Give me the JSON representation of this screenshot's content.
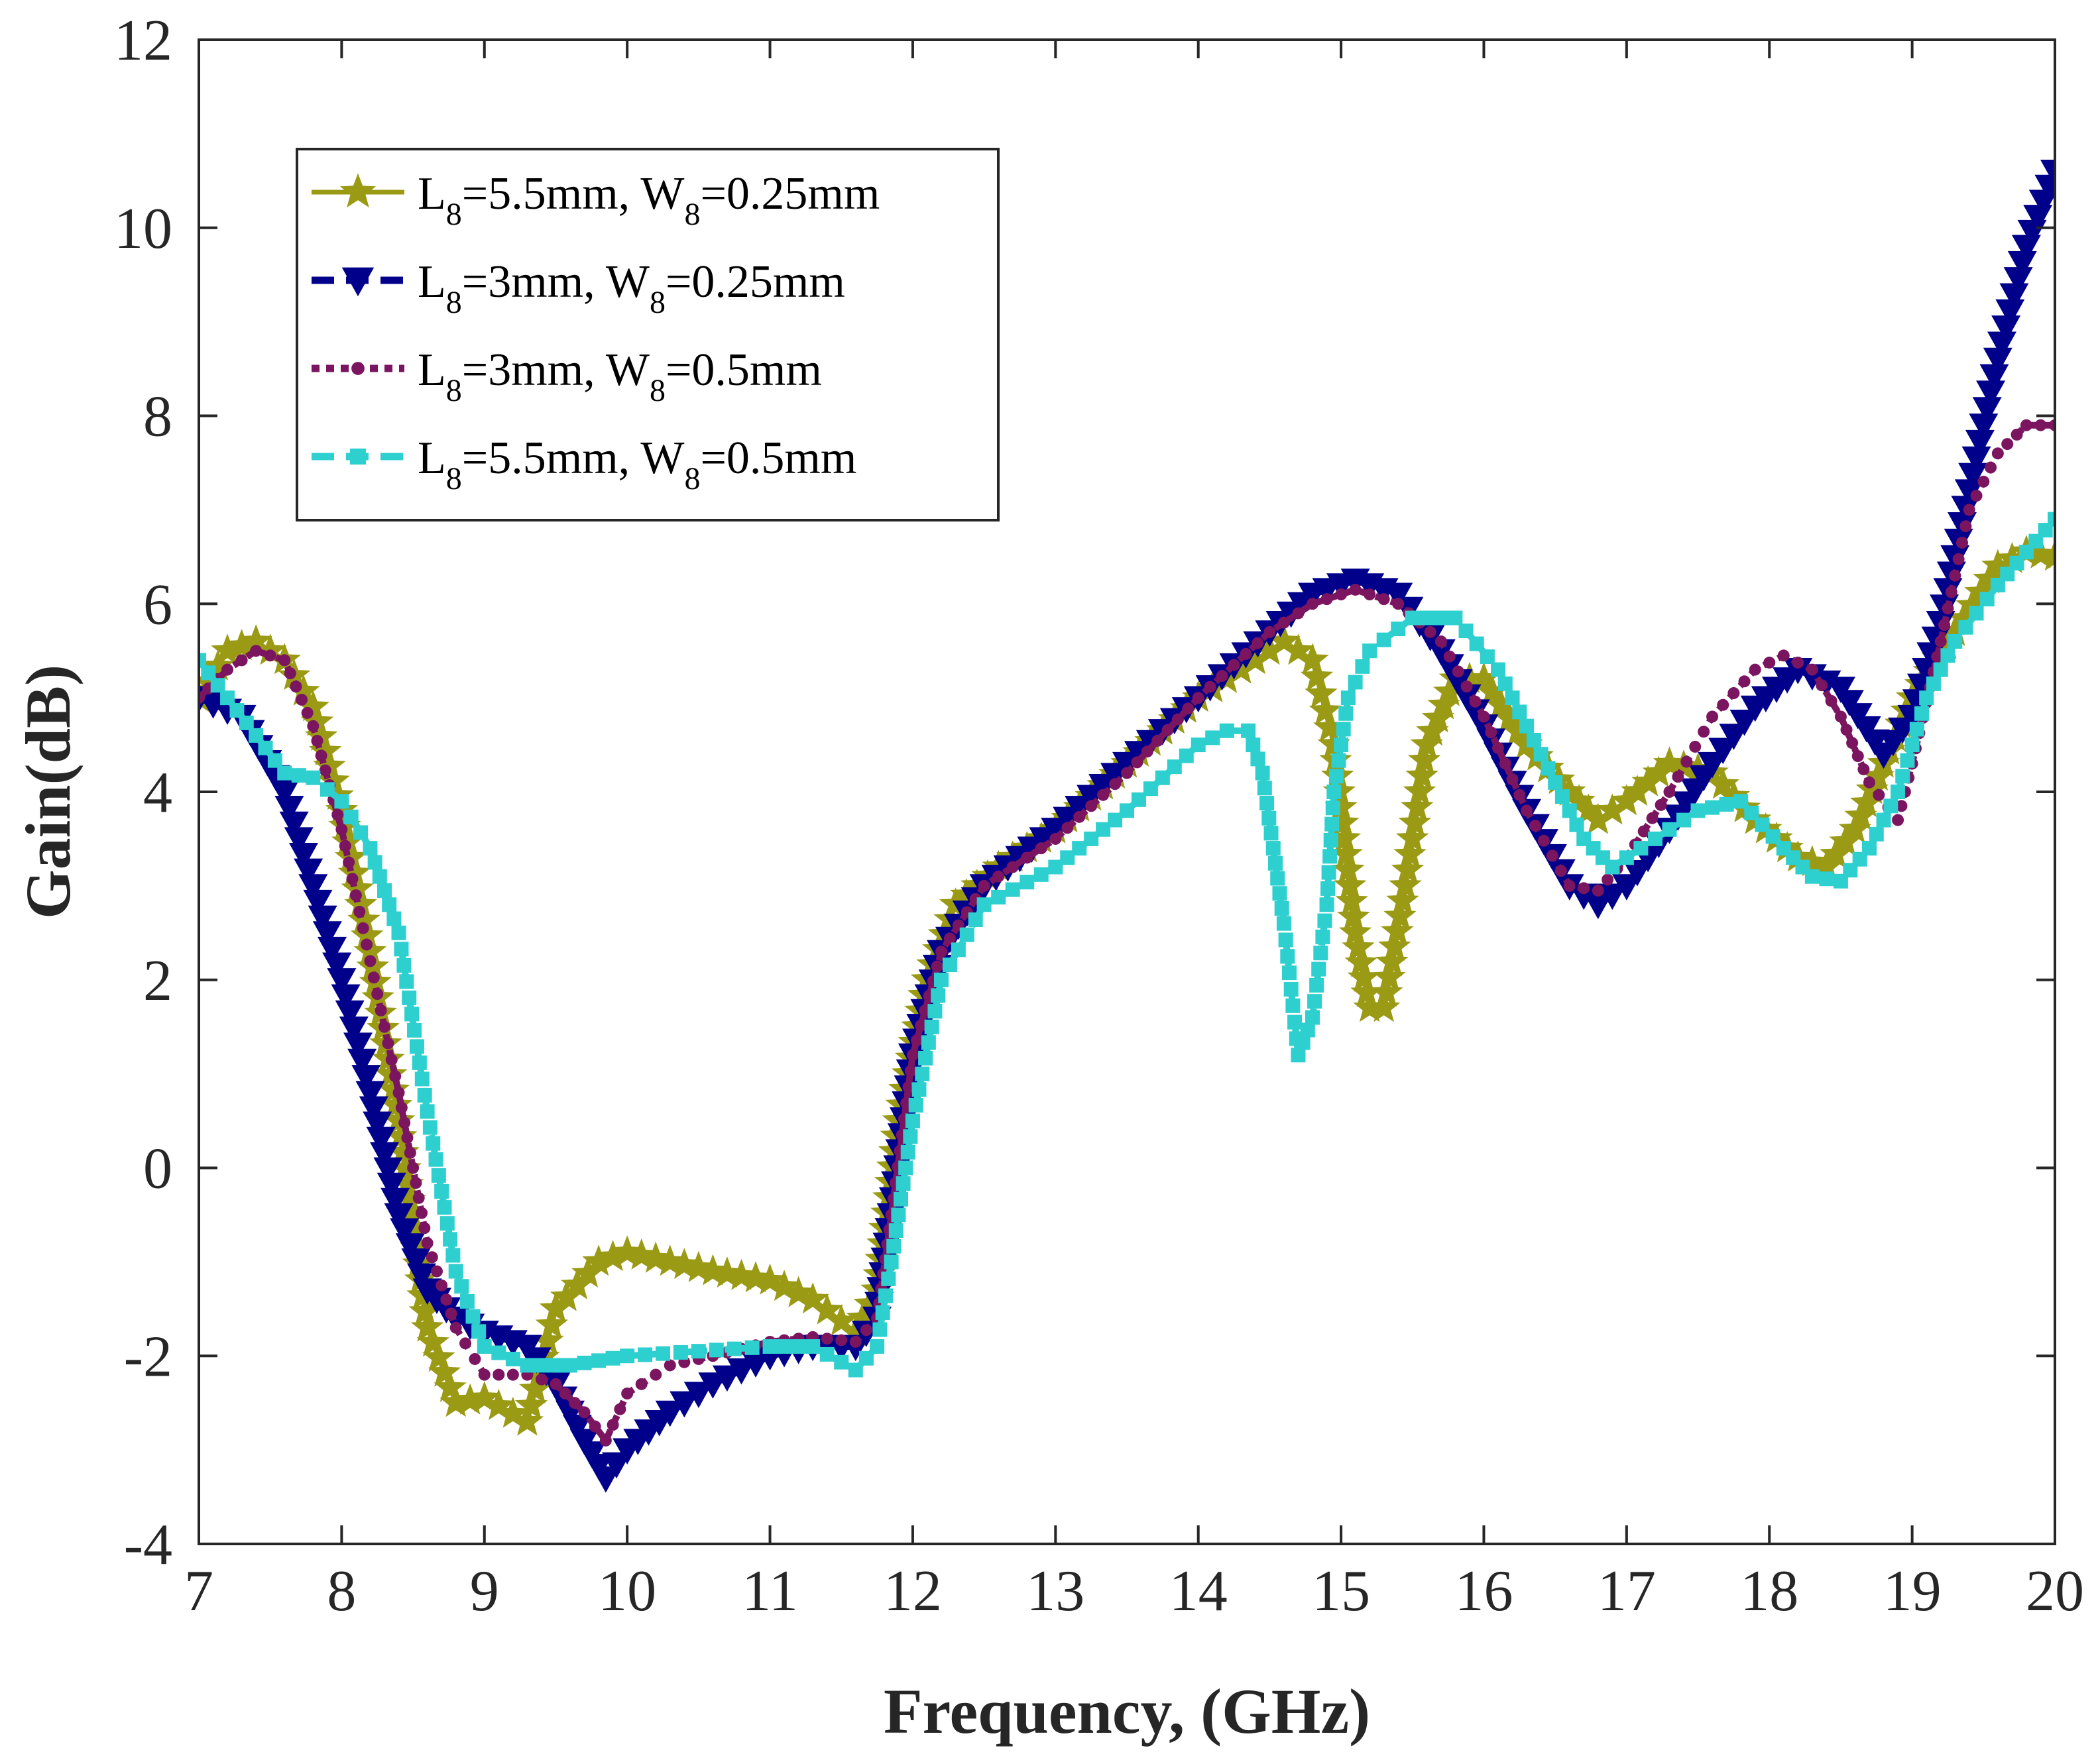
{
  "chart_data": {
    "type": "line",
    "title": "",
    "xlabel": "Frequency, (GHz)",
    "ylabel": "Gain(dB)",
    "xlim": [
      7,
      20
    ],
    "ylim": [
      -4,
      12
    ],
    "xticks": [
      7,
      8,
      9,
      10,
      11,
      12,
      13,
      14,
      15,
      16,
      17,
      18,
      19,
      20
    ],
    "yticks": [
      -4,
      -2,
      0,
      2,
      4,
      6,
      8,
      10,
      12
    ],
    "grid": false,
    "legend_position": "top-left",
    "series": [
      {
        "name": "L8=5.5mm, W8=0.25mm",
        "legend": {
          "a": "L",
          "a_sub": "8",
          "b": "=5.5mm, W",
          "b_sub": "8",
          "c": "=0.25mm"
        },
        "color": "#9a9a14",
        "line": "solid",
        "marker": "star",
        "x": [
          7.0,
          7.2,
          7.4,
          7.6,
          7.8,
          8.0,
          8.2,
          8.4,
          8.6,
          8.8,
          9.0,
          9.3,
          9.5,
          9.8,
          10.0,
          10.3,
          10.6,
          11.0,
          11.3,
          11.6,
          11.75,
          11.9,
          12.1,
          12.3,
          12.6,
          13.0,
          13.5,
          14.0,
          14.3,
          14.6,
          14.8,
          14.95,
          15.1,
          15.2,
          15.3,
          15.45,
          15.6,
          15.8,
          16.0,
          16.3,
          16.6,
          16.8,
          17.0,
          17.3,
          17.6,
          17.9,
          18.2,
          18.4,
          18.6,
          18.8,
          19.0,
          19.3,
          19.6,
          19.8,
          20.0
        ],
        "y": [
          5.0,
          5.5,
          5.6,
          5.4,
          4.9,
          3.8,
          2.3,
          0.5,
          -1.7,
          -2.5,
          -2.45,
          -2.7,
          -1.5,
          -1.0,
          -0.9,
          -1.0,
          -1.1,
          -1.2,
          -1.4,
          -1.75,
          -1.3,
          0.5,
          2.0,
          2.8,
          3.2,
          3.6,
          4.3,
          5.0,
          5.3,
          5.6,
          5.4,
          4.5,
          2.5,
          1.7,
          1.7,
          3.0,
          4.5,
          5.2,
          5.2,
          4.5,
          4.0,
          3.7,
          3.9,
          4.3,
          4.2,
          3.7,
          3.3,
          3.2,
          3.6,
          4.3,
          5.0,
          5.7,
          6.4,
          6.55,
          6.5
        ]
      },
      {
        "name": "L8=3mm, W8=0.25mm",
        "legend": {
          "a": "L",
          "a_sub": "8",
          "b": "=3mm, W",
          "b_sub": "8",
          "c": "=0.25mm"
        },
        "color": "#00008b",
        "line": "dashed",
        "marker": "triangle-down",
        "x": [
          7.0,
          7.3,
          7.6,
          7.8,
          8.0,
          8.2,
          8.4,
          8.6,
          8.8,
          9.0,
          9.3,
          9.5,
          9.7,
          9.85,
          10.0,
          10.3,
          10.6,
          11.0,
          11.3,
          11.6,
          11.75,
          11.85,
          12.0,
          12.2,
          12.5,
          13.0,
          13.5,
          14.0,
          14.5,
          14.8,
          15.1,
          15.4,
          15.7,
          16.0,
          16.3,
          16.6,
          16.8,
          17.0,
          17.3,
          17.6,
          17.9,
          18.2,
          18.5,
          18.8,
          19.0,
          19.2,
          19.4,
          19.6,
          19.8,
          20.0
        ],
        "y": [
          5.0,
          4.8,
          4.0,
          3.0,
          2.0,
          0.8,
          -0.5,
          -1.3,
          -1.6,
          -1.75,
          -1.9,
          -2.3,
          -2.9,
          -3.3,
          -3.0,
          -2.6,
          -2.3,
          -2.0,
          -1.9,
          -1.9,
          -1.6,
          -0.5,
          1.2,
          2.3,
          3.0,
          3.6,
          4.3,
          5.0,
          5.7,
          6.1,
          6.25,
          6.1,
          5.5,
          4.7,
          3.8,
          3.0,
          2.8,
          3.0,
          3.6,
          4.3,
          4.9,
          5.3,
          5.1,
          4.4,
          4.8,
          5.8,
          7.2,
          8.6,
          9.8,
          10.6
        ]
      },
      {
        "name": "L8=3mm, W8=0.5mm",
        "legend": {
          "a": "L",
          "a_sub": "8",
          "b": "=3mm, W",
          "b_sub": "8",
          "c": "=0.5mm"
        },
        "color": "#7b1560",
        "line": "dotted",
        "marker": "dot",
        "x": [
          7.0,
          7.2,
          7.4,
          7.6,
          7.8,
          8.0,
          8.2,
          8.4,
          8.6,
          8.8,
          9.0,
          9.3,
          9.5,
          9.7,
          9.85,
          10.0,
          10.3,
          10.6,
          11.0,
          11.3,
          11.6,
          11.75,
          11.85,
          12.0,
          12.2,
          12.5,
          13.0,
          13.5,
          14.0,
          14.5,
          14.8,
          15.1,
          15.4,
          15.7,
          16.0,
          16.3,
          16.6,
          16.8,
          17.0,
          17.3,
          17.6,
          17.9,
          18.1,
          18.3,
          18.5,
          18.7,
          18.9,
          19.0,
          19.2,
          19.4,
          19.6,
          19.8,
          20.0
        ],
        "y": [
          5.0,
          5.3,
          5.5,
          5.4,
          4.7,
          3.6,
          2.2,
          0.8,
          -0.8,
          -1.7,
          -2.2,
          -2.2,
          -2.3,
          -2.6,
          -2.9,
          -2.4,
          -2.1,
          -2.0,
          -1.85,
          -1.8,
          -1.85,
          -1.6,
          -0.5,
          1.2,
          2.3,
          3.0,
          3.5,
          4.2,
          5.0,
          5.7,
          6.0,
          6.15,
          6.0,
          5.6,
          4.8,
          3.8,
          3.0,
          2.95,
          3.3,
          4.0,
          4.8,
          5.3,
          5.45,
          5.3,
          4.8,
          4.1,
          3.7,
          4.3,
          5.6,
          7.0,
          7.6,
          7.9,
          7.9
        ]
      },
      {
        "name": "L8=5.5mm, W8=0.5mm",
        "legend": {
          "a": "L",
          "a_sub": "8",
          "b": "=5.5mm, W",
          "b_sub": "8",
          "c": "=0.5mm"
        },
        "color": "#2ecfcf",
        "line": "dashed",
        "marker": "square",
        "x": [
          7.0,
          7.2,
          7.4,
          7.6,
          7.8,
          8.0,
          8.2,
          8.4,
          8.6,
          8.8,
          9.0,
          9.3,
          9.6,
          9.8,
          10.0,
          10.5,
          11.0,
          11.3,
          11.6,
          11.75,
          11.85,
          12.0,
          12.2,
          12.5,
          13.0,
          13.5,
          14.0,
          14.2,
          14.35,
          14.45,
          14.6,
          14.7,
          14.8,
          14.9,
          14.95,
          15.05,
          15.2,
          15.5,
          15.8,
          16.1,
          16.4,
          16.7,
          16.9,
          17.2,
          17.5,
          17.8,
          18.1,
          18.3,
          18.5,
          18.7,
          18.9,
          19.1,
          19.3,
          19.6,
          19.8,
          20.0
        ],
        "y": [
          5.4,
          5.0,
          4.6,
          4.2,
          4.15,
          3.9,
          3.4,
          2.5,
          0.6,
          -1.1,
          -1.9,
          -2.1,
          -2.1,
          -2.05,
          -2.0,
          -1.95,
          -1.9,
          -1.9,
          -2.15,
          -1.9,
          -1.0,
          0.5,
          2.0,
          2.8,
          3.2,
          3.8,
          4.5,
          4.65,
          4.65,
          4.2,
          2.6,
          1.2,
          1.6,
          2.8,
          4.0,
          5.0,
          5.5,
          5.85,
          5.85,
          5.3,
          4.4,
          3.5,
          3.2,
          3.5,
          3.8,
          3.9,
          3.4,
          3.1,
          3.05,
          3.4,
          4.0,
          5.0,
          5.6,
          6.2,
          6.55,
          6.9
        ]
      }
    ]
  }
}
